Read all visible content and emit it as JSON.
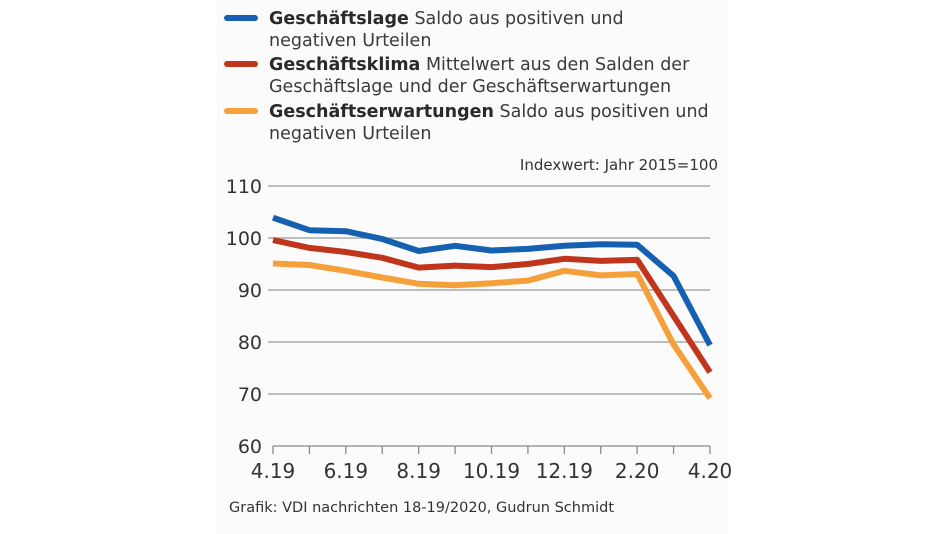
{
  "chart_data": {
    "type": "line",
    "title": "",
    "note": "Indexwert: Jahr 2015=100",
    "xlabel": "",
    "ylabel": "",
    "ylim": [
      60,
      110
    ],
    "yticks": [
      "60",
      "70",
      "80",
      "90",
      "100",
      "110"
    ],
    "x": [
      "4.19",
      "5.19",
      "6.19",
      "7.19",
      "8.19",
      "9.19",
      "10.19",
      "11.19",
      "12.19",
      "1.20",
      "2.20",
      "3.20",
      "4.20"
    ],
    "xtick_labels": [
      "4.19",
      "6.19",
      "8.19",
      "10.19",
      "12.19",
      "2.20",
      "4.20"
    ],
    "grid": "horizontal",
    "legend_position": "top",
    "series": [
      {
        "name": "Geschäftslage",
        "description": "Saldo aus positiven und negativen Urteilen",
        "color": "#1560b0",
        "values": [
          103.9,
          101.5,
          101.3,
          99.8,
          97.5,
          98.5,
          97.6,
          97.9,
          98.5,
          98.8,
          98.7,
          92.7,
          79.4
        ]
      },
      {
        "name": "Geschäftsklima",
        "description": "Mittelwert aus den Salden der Geschäftslage und der Geschäftserwartungen",
        "color": "#c0361c",
        "values": [
          99.6,
          98.1,
          97.3,
          96.2,
          94.3,
          94.7,
          94.4,
          95.0,
          96.0,
          95.6,
          95.8,
          85.0,
          74.2
        ]
      },
      {
        "name": "Geschäftserwartungen",
        "description": "Saldo aus positiven und negativen Urteilen",
        "color": "#f5a03a",
        "values": [
          95.1,
          94.8,
          93.7,
          92.4,
          91.2,
          90.9,
          91.3,
          91.8,
          93.7,
          92.8,
          93.1,
          79.5,
          69.2
        ]
      }
    ]
  },
  "legend": [
    {
      "bold": "Geschäftslage",
      "line1": " Saldo aus positiven und",
      "line2": "negativen Urteilen"
    },
    {
      "bold": "Geschäftsklima",
      "line1": " Mittelwert aus den Salden der",
      "line2": "Geschäftslage und der Geschäftserwartungen"
    },
    {
      "bold": "Geschäftserwartungen",
      "line1": " Saldo aus positiven und",
      "line2": "negativen Urteilen"
    }
  ],
  "source": "Grafik: VDI nachrichten 18-19/2020, Gudrun Schmidt"
}
